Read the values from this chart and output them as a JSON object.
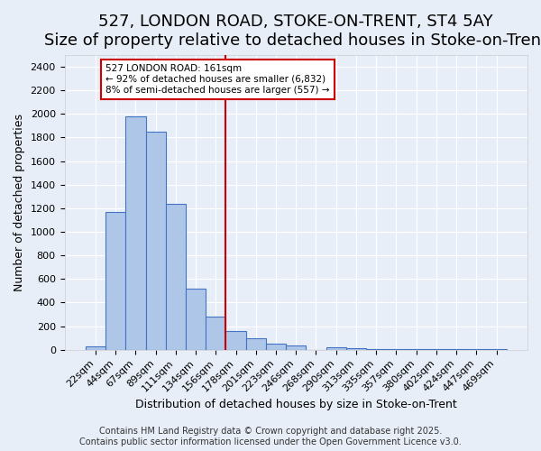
{
  "title": "527, LONDON ROAD, STOKE-ON-TRENT, ST4 5AY",
  "subtitle": "Size of property relative to detached houses in Stoke-on-Trent",
  "xlabel": "Distribution of detached houses by size in Stoke-on-Trent",
  "ylabel": "Number of detached properties",
  "categories": [
    "22sqm",
    "44sqm",
    "67sqm",
    "89sqm",
    "111sqm",
    "134sqm",
    "156sqm",
    "178sqm",
    "201sqm",
    "223sqm",
    "246sqm",
    "268sqm",
    "290sqm",
    "313sqm",
    "335sqm",
    "357sqm",
    "380sqm",
    "402sqm",
    "424sqm",
    "447sqm",
    "469sqm"
  ],
  "values": [
    30,
    1170,
    1980,
    1850,
    1240,
    520,
    280,
    155,
    95,
    50,
    40,
    0,
    20,
    10,
    5,
    5,
    5,
    5,
    5,
    5,
    5
  ],
  "bar_color": "#aec6e8",
  "bar_edge_color": "#4472c4",
  "vline_x_index": 6,
  "vline_color": "#cc0000",
  "annotation_text": "527 LONDON ROAD: 161sqm\n← 92% of detached houses are smaller (6,832)\n8% of semi-detached houses are larger (557) →",
  "annotation_box_color": "#cc0000",
  "annotation_text_color": "#000000",
  "ylim": [
    0,
    2500
  ],
  "yticks": [
    0,
    200,
    400,
    600,
    800,
    1000,
    1200,
    1400,
    1600,
    1800,
    2000,
    2200,
    2400
  ],
  "footer_line1": "Contains HM Land Registry data © Crown copyright and database right 2025.",
  "footer_line2": "Contains public sector information licensed under the Open Government Licence v3.0.",
  "background_color": "#e8eef8",
  "plot_background": "#e8eef8",
  "grid_color": "#ffffff",
  "title_fontsize": 13,
  "subtitle_fontsize": 11,
  "label_fontsize": 9,
  "tick_fontsize": 8,
  "footer_fontsize": 7
}
